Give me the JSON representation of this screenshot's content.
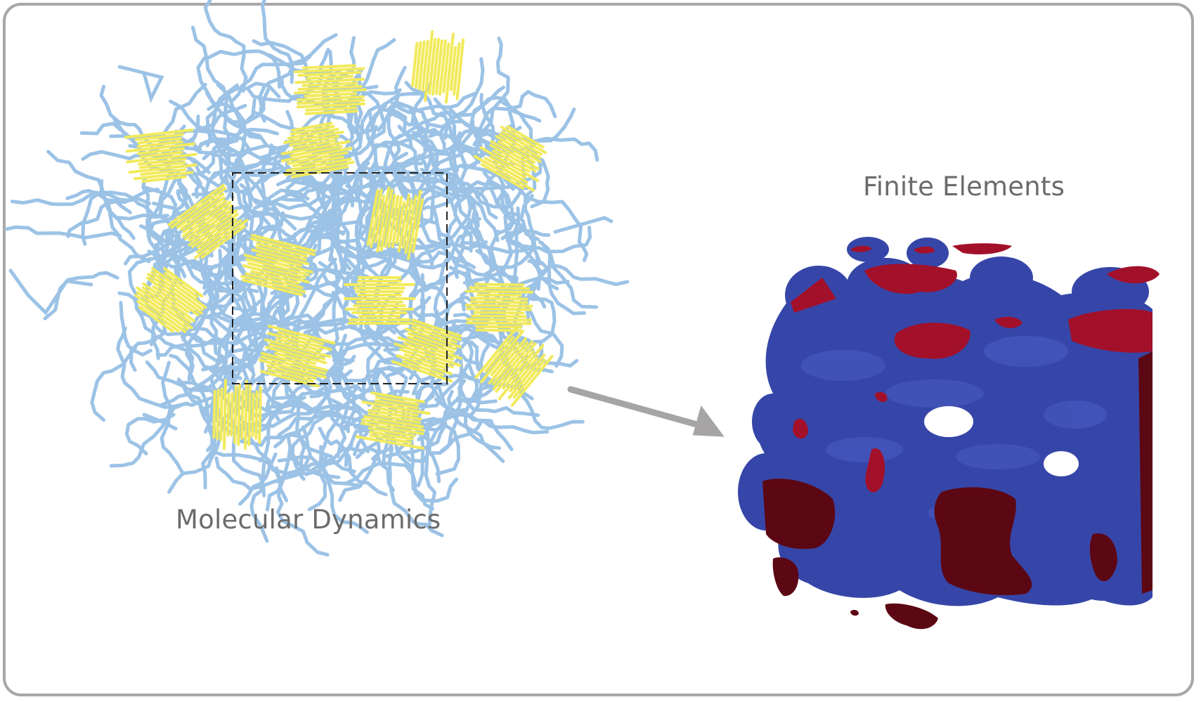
{
  "labels": {
    "molecular_dynamics": "Molecular Dynamics",
    "finite_elements": "Finite Elements"
  },
  "colors": {
    "frame_border": "#a9a6a6",
    "label_text": "#6b6b6b",
    "md_chain_blue": "#9cc3e6",
    "md_chain_yellow": "#f2ea5c",
    "fe_surface_blue": "#3646a8",
    "fe_cut_red": "#a3102a",
    "fe_cut_dark": "#5c0714",
    "arrow_gray": "#a6a4a4"
  },
  "icons": {
    "arrow": "right-down-arrow-icon"
  }
}
